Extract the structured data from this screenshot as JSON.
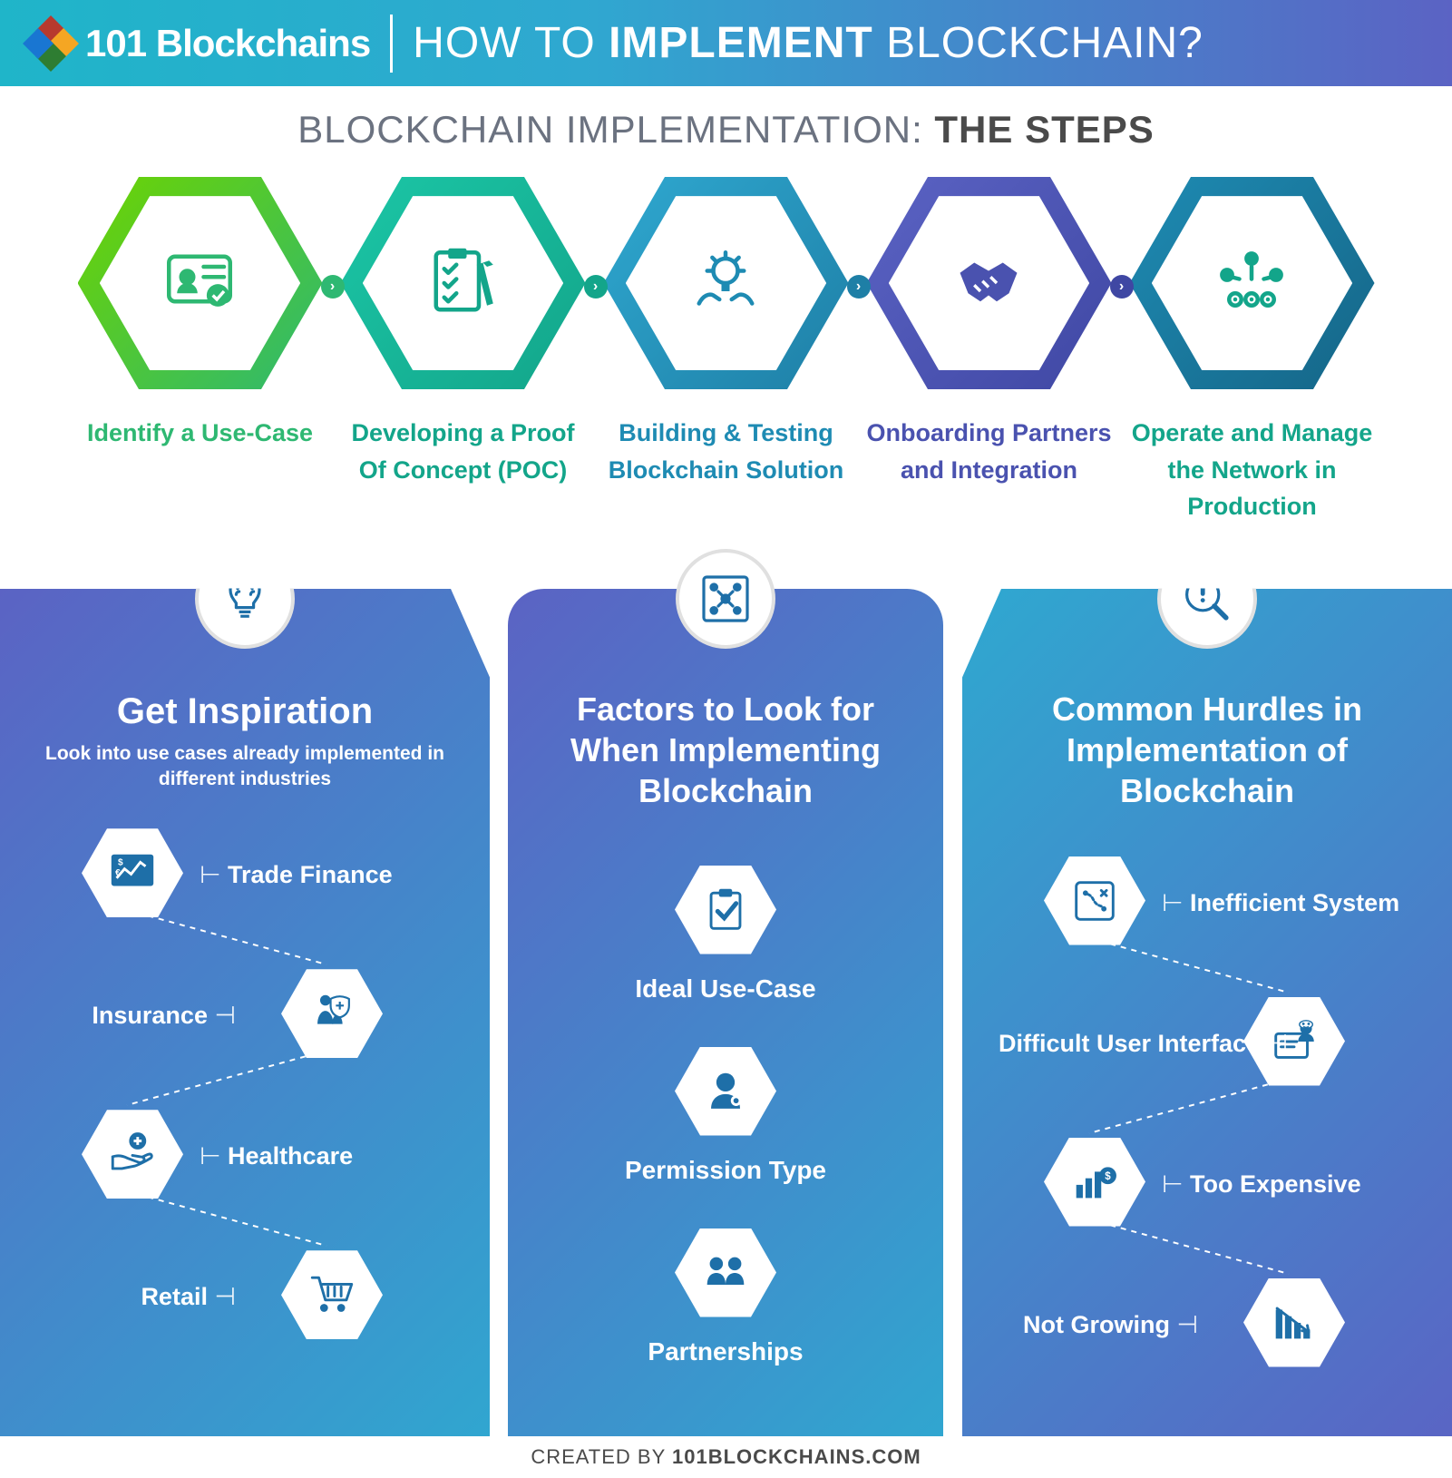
{
  "header": {
    "brand": "101 Blockchains",
    "title_light_1": "HOW TO ",
    "title_bold": "IMPLEMENT",
    "title_light_2": " BLOCKCHAIN?",
    "bg_gradient_from": "#1fb5c9",
    "bg_gradient_to": "#5b63c4"
  },
  "subtitle": {
    "light": "BLOCKCHAIN IMPLEMENTATION: ",
    "bold": "THE STEPS"
  },
  "steps": [
    {
      "label_l1": "Identify a Use-Case",
      "label_l2": "",
      "color_from": "#6dd400",
      "color_to": "#2eb872",
      "text_color": "#2eb872",
      "icon": "id-check"
    },
    {
      "label_l1": "Developing a Proof",
      "label_l2": "Of Concept (POC)",
      "color_from": "#1bc6a6",
      "color_to": "#13a58a",
      "text_color": "#13a58a",
      "icon": "checklist"
    },
    {
      "label_l1": "Building & Testing",
      "label_l2": "Blockchain Solution",
      "color_from": "#2fa8d0",
      "color_to": "#1e7fa6",
      "text_color": "#1e8bb3",
      "icon": "idea-hands"
    },
    {
      "label_l1": "Onboarding Partners",
      "label_l2": "and Integration",
      "color_from": "#5b63c4",
      "color_to": "#3f47a3",
      "text_color": "#4a52af",
      "icon": "handshake"
    },
    {
      "label_l1": "Operate and Manage",
      "label_l2": "the Network in Production",
      "color_from": "#1e8bb3",
      "color_to": "#156587",
      "text_color": "#13a58a",
      "icon": "network-people"
    }
  ],
  "columns": {
    "left": {
      "title": "Get Inspiration",
      "sub": "Look into use cases already implemented in different industries",
      "badge_icon": "bulb-brain",
      "items": [
        {
          "label": "Trade Finance",
          "icon": "finance-chart",
          "side": "right"
        },
        {
          "label": "Insurance",
          "icon": "family-shield",
          "side": "left"
        },
        {
          "label": "Healthcare",
          "icon": "medical-hand",
          "side": "right"
        },
        {
          "label": "Retail",
          "icon": "cart",
          "side": "left"
        }
      ]
    },
    "mid": {
      "title": "Factors to Look for When Implementing Blockchain",
      "badge_icon": "people-grid",
      "items": [
        {
          "label": "Ideal Use-Case",
          "icon": "clipboard-check"
        },
        {
          "label": "Permission Type",
          "icon": "user-key"
        },
        {
          "label": "Partnerships",
          "icon": "team"
        }
      ]
    },
    "right": {
      "title": "Common Hurdles in Implementation of Blockchain",
      "badge_icon": "magnify-alert",
      "items": [
        {
          "label": "Inefficient System",
          "icon": "tactics-board",
          "side": "right"
        },
        {
          "label": "Difficult User Interface",
          "icon": "user-screen",
          "side": "left"
        },
        {
          "label": "Too Expensive",
          "icon": "bars-coin",
          "side": "right"
        },
        {
          "label": "Not Growing",
          "icon": "bars-down",
          "side": "left"
        }
      ]
    }
  },
  "footer": {
    "light": "CREATED BY ",
    "bold": "101BLOCKCHAINS.COM"
  },
  "colors": {
    "col_icon": "#1e6fa8",
    "col_bg_from": "#5b63c4",
    "col_bg_to": "#2fa8d0",
    "white": "#ffffff"
  }
}
